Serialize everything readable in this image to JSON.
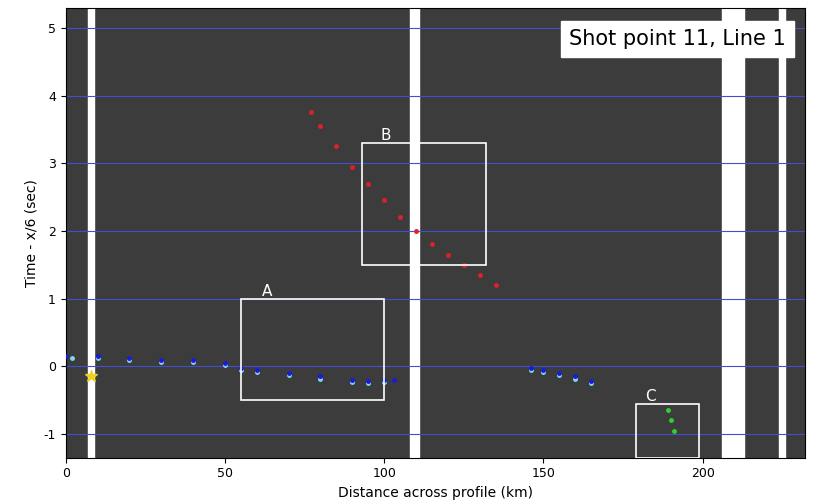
{
  "chart_data": {
    "type": "scatter",
    "title": "Shot point 11, Line 1",
    "x_label": "Distance across profile (km)",
    "y_label": "Time - x/6 (sec)",
    "xlim": [
      0,
      232
    ],
    "ylim": [
      -1.35,
      5.3
    ],
    "xticks": [
      0,
      50,
      100,
      150,
      200
    ],
    "yticks": [
      -1,
      0,
      1,
      2,
      3,
      4,
      5
    ],
    "grid": true,
    "series": [
      {
        "color": "#7fd6f0",
        "marker": "o",
        "line_style": "none",
        "x": [
          2,
          10,
          20,
          30,
          40,
          50,
          55,
          60,
          70,
          80,
          90,
          95,
          100,
          146,
          150,
          155,
          160,
          165
        ],
        "values": [
          0.12,
          0.12,
          0.09,
          0.07,
          0.07,
          0.02,
          -0.05,
          -0.08,
          -0.13,
          -0.18,
          -0.23,
          -0.25,
          -0.23,
          -0.05,
          -0.08,
          -0.13,
          -0.18,
          -0.25
        ]
      },
      {
        "color": "#1a1adb",
        "marker": "o",
        "line_style": "none",
        "x": [
          0,
          10,
          20,
          30,
          40,
          50,
          55,
          60,
          70,
          80,
          90,
          95,
          100,
          103,
          146,
          150,
          155,
          160,
          165
        ],
        "values": [
          0.15,
          0.15,
          0.12,
          0.1,
          0.1,
          0.05,
          -0.02,
          -0.05,
          -0.1,
          -0.15,
          -0.2,
          -0.22,
          -0.2,
          -0.2,
          -0.02,
          -0.05,
          -0.1,
          -0.15,
          -0.22
        ]
      },
      {
        "color": "#e0202a",
        "marker": "o",
        "line_style": "none",
        "x": [
          77,
          80,
          85,
          90,
          95,
          100,
          105,
          110,
          115,
          120,
          125,
          130,
          135
        ],
        "values": [
          3.75,
          3.55,
          3.25,
          2.95,
          2.7,
          2.45,
          2.2,
          2.0,
          1.8,
          1.65,
          1.5,
          1.35,
          1.2
        ]
      },
      {
        "color": "#2fd02f",
        "marker": "o",
        "line_style": "none",
        "x": [
          189,
          190,
          191
        ],
        "values": [
          -0.65,
          -0.8,
          -0.95
        ]
      }
    ],
    "boxes": [
      {
        "label": "A",
        "x": [
          55,
          100
        ],
        "y": [
          -0.5,
          1.0
        ]
      },
      {
        "label": "B",
        "x": [
          93,
          132
        ],
        "y": [
          1.5,
          3.3
        ]
      },
      {
        "label": "C",
        "x": [
          179,
          199
        ],
        "y": [
          -1.35,
          -0.55
        ]
      }
    ],
    "gaps": [
      [
        7,
        9
      ],
      [
        108,
        111
      ],
      [
        206,
        213
      ],
      [
        224,
        226
      ]
    ],
    "shot": {
      "x": 8,
      "y": -0.15,
      "color": "#f0d020",
      "marker": "*"
    }
  }
}
